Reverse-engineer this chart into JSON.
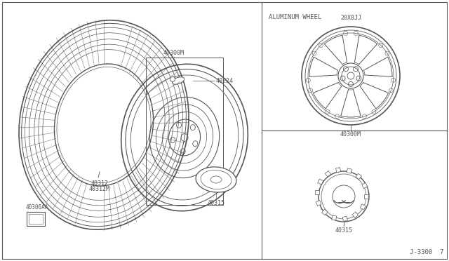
{
  "bg_color": "#ffffff",
  "line_color": "#555555",
  "title_text": "ALUMINUM WHEEL",
  "part_numbers": {
    "tire": "40312\n40312M",
    "wheel_label": "40300M",
    "valve": "40224",
    "cap": "40315",
    "sticker": "40306AA",
    "alum_wheel": "40300M",
    "center_cap": "40315",
    "wheel_size": "20X8JJ"
  },
  "diagram_label": "J-3300  7"
}
